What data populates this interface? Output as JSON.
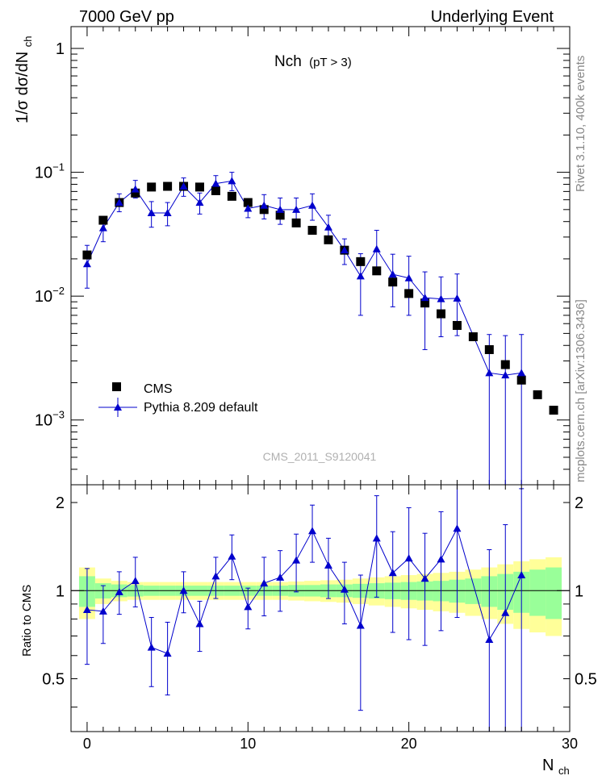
{
  "header": {
    "left": "7000 GeV pp",
    "right": "Underlying Event"
  },
  "side_labels": {
    "rivet": "Rivet 3.1.10,  400k events",
    "mcplots": "mcplots.cern.ch [arXiv:1306.3436]"
  },
  "colors": {
    "data": "#000000",
    "mc": "#0000cc",
    "band_inner": "#99ff99",
    "band_outer": "#ffff99",
    "watermark": "#b0b0b0"
  },
  "chart_data": [
    {
      "type": "scatter",
      "title": "Nch",
      "title_sub": "(pT >  3)",
      "ylabel": "1/σ dσ/dN",
      "ylabel_sub": "ch",
      "yscale": "log",
      "xlim": [
        -1,
        30
      ],
      "ylim": [
        0.0003,
        1.5
      ],
      "y_ticks": [
        {
          "value": 1,
          "base": "1",
          "exp": ""
        },
        {
          "value": 0.1,
          "base": "10",
          "exp": "−1"
        },
        {
          "value": 0.01,
          "base": "10",
          "exp": "−2"
        },
        {
          "value": 0.001,
          "base": "10",
          "exp": "−3"
        }
      ],
      "watermark": "CMS_2011_S9120041",
      "legend": {
        "position": "bottom-left"
      },
      "series": [
        {
          "name": "CMS",
          "marker": "square",
          "x": [
            0,
            1,
            2,
            3,
            4,
            5,
            6,
            7,
            8,
            9,
            10,
            11,
            12,
            13,
            14,
            15,
            16,
            17,
            18,
            19,
            20,
            21,
            22,
            23,
            24,
            25,
            26,
            27,
            28,
            29
          ],
          "y": [
            0.0215,
            0.041,
            0.057,
            0.068,
            0.076,
            0.077,
            0.077,
            0.076,
            0.071,
            0.064,
            0.057,
            0.05,
            0.045,
            0.039,
            0.034,
            0.0285,
            0.0235,
            0.019,
            0.016,
            0.013,
            0.0105,
            0.0088,
            0.0072,
            0.0058,
            0.0047,
            0.0037,
            0.0028,
            0.0021,
            0.0016,
            0.0012
          ]
        },
        {
          "name": "Pythia 8.209 default",
          "marker": "triangle",
          "x": [
            0,
            1,
            2,
            3,
            4,
            5,
            6,
            7,
            8,
            9,
            10,
            11,
            12,
            13,
            14,
            15,
            16,
            17,
            18,
            19,
            20,
            21,
            22,
            23,
            25,
            26,
            27
          ],
          "y": [
            0.0182,
            0.0355,
            0.057,
            0.073,
            0.047,
            0.047,
            0.077,
            0.057,
            0.081,
            0.085,
            0.051,
            0.054,
            0.05,
            0.05,
            0.054,
            0.036,
            0.0235,
            0.0145,
            0.024,
            0.015,
            0.014,
            0.0097,
            0.0095,
            0.0096,
            0.0024,
            0.0023,
            0.0024
          ],
          "yerr_lo": [
            0.0066,
            0.008,
            0.009,
            0.011,
            0.011,
            0.01,
            0.013,
            0.011,
            0.013,
            0.014,
            0.008,
            0.012,
            0.012,
            0.012,
            0.013,
            0.009,
            0.0055,
            0.0075,
            0.009,
            0.0068,
            0.007,
            0.006,
            0.0048,
            0.0048,
            0.00237,
            0.00227,
            0.00237
          ],
          "yerr_hi": [
            0.0075,
            0.008,
            0.01,
            0.013,
            0.011,
            0.01,
            0.013,
            0.011,
            0.013,
            0.015,
            0.008,
            0.012,
            0.012,
            0.012,
            0.013,
            0.009,
            0.0055,
            0.0075,
            0.01,
            0.0068,
            0.007,
            0.006,
            0.0048,
            0.0055,
            0.0025,
            0.0025,
            0.0025
          ]
        }
      ]
    },
    {
      "type": "line",
      "ylabel": "Ratio to CMS",
      "xlabel": "N",
      "xlabel_sub": "ch",
      "xlim": [
        -1,
        30
      ],
      "ylim": [
        0.33,
        2.3
      ],
      "x_ticks": [
        0,
        10,
        20,
        30
      ],
      "y_ticks": [
        0.5,
        1,
        2
      ],
      "bands": {
        "x_edges": [
          -0.5,
          0.5,
          1.5,
          2.5,
          3.5,
          4.5,
          5.5,
          6.5,
          7.5,
          8.5,
          9.5,
          10.5,
          11.5,
          12.5,
          13.5,
          14.5,
          15.5,
          16.5,
          17.5,
          18.5,
          19.5,
          20.5,
          21.5,
          22.5,
          23.5,
          24.5,
          25.5,
          26.5,
          27.5,
          28.5,
          29.5
        ],
        "inner_half": [
          0.12,
          0.06,
          0.05,
          0.045,
          0.04,
          0.04,
          0.04,
          0.04,
          0.04,
          0.04,
          0.04,
          0.04,
          0.04,
          0.045,
          0.045,
          0.05,
          0.05,
          0.055,
          0.06,
          0.065,
          0.07,
          0.075,
          0.08,
          0.09,
          0.1,
          0.12,
          0.14,
          0.16,
          0.18,
          0.2
        ],
        "outer_half": [
          0.2,
          0.1,
          0.08,
          0.07,
          0.07,
          0.07,
          0.07,
          0.07,
          0.07,
          0.07,
          0.07,
          0.07,
          0.07,
          0.075,
          0.08,
          0.085,
          0.09,
          0.1,
          0.11,
          0.12,
          0.13,
          0.14,
          0.15,
          0.16,
          0.18,
          0.2,
          0.23,
          0.26,
          0.28,
          0.3
        ]
      },
      "series": [
        {
          "name": "Pythia 8.209 default",
          "x": [
            0,
            1,
            2,
            3,
            4,
            5,
            6,
            7,
            8,
            9,
            10,
            11,
            12,
            13,
            14,
            15,
            16,
            17,
            18,
            19,
            20,
            21,
            22,
            23,
            25,
            26,
            27
          ],
          "y": [
            0.86,
            0.85,
            0.99,
            1.08,
            0.64,
            0.61,
            1.0,
            0.77,
            1.12,
            1.31,
            0.88,
            1.06,
            1.11,
            1.27,
            1.6,
            1.22,
            1.01,
            0.76,
            1.51,
            1.15,
            1.29,
            1.1,
            1.28,
            1.63,
            0.68,
            0.84,
            1.13
          ],
          "yerr_lo": [
            0.3,
            0.19,
            0.16,
            0.2,
            0.17,
            0.17,
            0.16,
            0.15,
            0.18,
            0.22,
            0.14,
            0.24,
            0.26,
            0.28,
            0.35,
            0.28,
            0.24,
            0.37,
            0.56,
            0.43,
            0.61,
            0.45,
            0.55,
            0.82,
            0.67,
            0.83,
            1.12
          ],
          "yerr_hi": [
            0.33,
            0.19,
            0.17,
            0.22,
            0.17,
            0.17,
            0.16,
            0.15,
            0.18,
            0.24,
            0.14,
            0.24,
            0.26,
            0.29,
            0.36,
            0.29,
            0.24,
            0.37,
            0.6,
            0.44,
            0.63,
            0.47,
            0.58,
            0.9,
            0.7,
            0.84,
            1.1
          ]
        }
      ]
    }
  ]
}
